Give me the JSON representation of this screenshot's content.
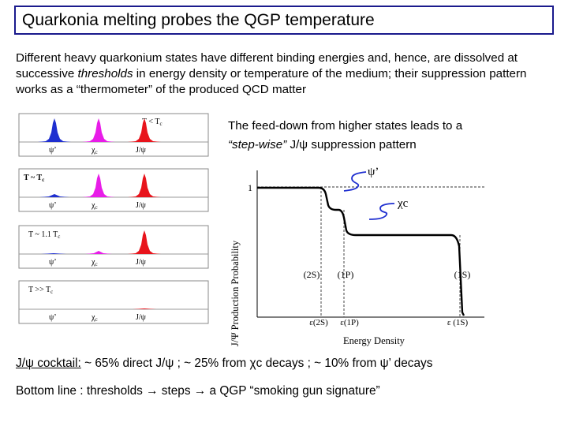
{
  "title": "Quarkonia melting probes the QGP temperature",
  "intro": {
    "part1": "Different heavy quarkonium states have different binding energies and, hence, are dissolved at successive ",
    "emph": "thresholds",
    "part2": " in energy density or temperature of the medium; their suppression pattern works as a “thermometer” of the produced QCD matter"
  },
  "feeddown": {
    "line1": "The feed-down from higher states leads to a",
    "emph": "“step-wise”",
    "rest": " J/ψ suppression pattern"
  },
  "panels": [
    {
      "condition": "T < T_c",
      "labels": [
        "ψ’",
        "χc",
        "J/ψ"
      ]
    },
    {
      "condition": "T ~ T_c",
      "labels": [
        "ψ’",
        "χc",
        "J/ψ"
      ]
    },
    {
      "condition": "T ~ 1.1 T_c",
      "labels": [
        "ψ’",
        "χc",
        "J/ψ"
      ]
    },
    {
      "condition": "T >> T_c",
      "labels": [
        "ψ’",
        "χc",
        "J/ψ"
      ]
    }
  ],
  "colors": {
    "psi_prime": "#1f2fd0",
    "chi_c": "#e81ce8",
    "jpsi": "#e8141c",
    "title_border": "#1a1a8c"
  },
  "plot": {
    "ylabel": "J/Ψ Production Probability",
    "xlabel": "Energy Density",
    "y_tick": "1",
    "annot_psi": "ψ’",
    "annot_chi": "χc",
    "states": [
      "(2S)",
      "(1P)",
      "(1S)"
    ],
    "thresholds": [
      "ε(2S)",
      "ε(1P)",
      "ε (1S)"
    ]
  },
  "cocktail": {
    "label": "J/ψ cocktail:",
    "text": " ~ 65% direct J/ψ ; ~ 25% from χc decays ; ~ 10% from ψ’ decays"
  },
  "bottom_line": "Bottom line : thresholds → steps → a QGP “smoking gun signature”"
}
